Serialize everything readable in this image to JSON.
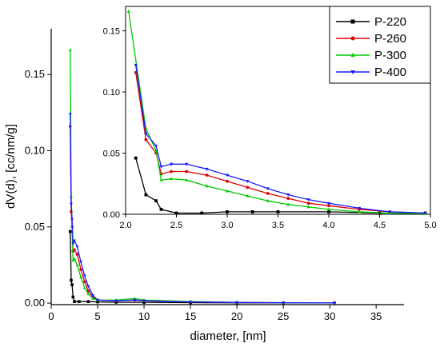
{
  "chart_data": [
    {
      "type": "line",
      "title": "",
      "xlabel": "diameter, [nm]",
      "ylabel": "dV(d), [cc/nm/g]",
      "xlim": [
        0,
        38
      ],
      "ylim": [
        -0.001,
        0.18
      ],
      "xticks": [
        0,
        5,
        10,
        15,
        20,
        25,
        30,
        35
      ],
      "yticks": [
        0.0,
        0.05,
        0.1,
        0.15
      ],
      "xtick_labels": [
        "0",
        "5",
        "10",
        "15",
        "20",
        "25",
        "30",
        "35"
      ],
      "ytick_labels": [
        "0.00",
        "0.05",
        "0.10",
        "0.15"
      ],
      "legend_position": "top-right",
      "grid": false,
      "series": [
        {
          "name": "P-220",
          "color": "#000000",
          "marker": "square",
          "x": [
            2.05,
            2.15,
            2.25,
            2.35,
            2.5,
            3.0,
            4.0,
            5.0,
            7.0,
            10.0,
            15.0,
            20.0,
            25.0,
            30.5
          ],
          "y": [
            0.047,
            0.015,
            0.012,
            0.004,
            0.001,
            0.001,
            0.001,
            0.0008,
            0.0006,
            0.0005,
            0.0003,
            0.0002,
            0.0001,
            0.0001
          ]
        },
        {
          "name": "P-260",
          "color": "#e00000",
          "marker": "circle",
          "x": [
            2.05,
            2.15,
            2.25,
            2.35,
            2.5,
            2.8,
            3.2,
            3.6,
            4.0,
            4.5,
            5.0,
            7.0,
            9.0,
            10.0,
            15.0,
            20.0,
            25.0,
            30.5
          ],
          "y": [
            0.116,
            0.06,
            0.05,
            0.034,
            0.035,
            0.032,
            0.022,
            0.014,
            0.008,
            0.004,
            0.002,
            0.0015,
            0.002,
            0.0015,
            0.0008,
            0.0004,
            0.0002,
            0.0001
          ]
        },
        {
          "name": "P-300",
          "color": "#00cc00",
          "marker": "triangle-up",
          "x": [
            2.05,
            2.15,
            2.25,
            2.35,
            2.5,
            2.8,
            3.2,
            3.6,
            4.0,
            4.5,
            5.0,
            7.0,
            9.0,
            10.0,
            15.0,
            20.0,
            25.0,
            30.5
          ],
          "y": [
            0.166,
            0.07,
            0.05,
            0.028,
            0.029,
            0.025,
            0.017,
            0.01,
            0.006,
            0.003,
            0.002,
            0.002,
            0.003,
            0.002,
            0.001,
            0.0005,
            0.0002,
            0.0001
          ]
        },
        {
          "name": "P-400",
          "color": "#1a1aff",
          "marker": "triangle-down",
          "x": [
            2.05,
            2.15,
            2.25,
            2.35,
            2.5,
            2.8,
            3.2,
            3.6,
            4.0,
            4.5,
            5.0,
            7.0,
            9.0,
            10.0,
            15.0,
            20.0,
            25.0,
            30.5
          ],
          "y": [
            0.124,
            0.065,
            0.055,
            0.039,
            0.041,
            0.037,
            0.027,
            0.018,
            0.011,
            0.005,
            0.002,
            0.0015,
            0.002,
            0.0015,
            0.0008,
            0.0004,
            0.0002,
            0.0001
          ]
        }
      ]
    },
    {
      "type": "line",
      "title": "",
      "xlabel": "",
      "ylabel": "",
      "xlim": [
        2.0,
        5.0
      ],
      "ylim": [
        0,
        0.17
      ],
      "xticks": [
        2.0,
        2.5,
        3.0,
        3.5,
        4.0,
        4.5,
        5.0
      ],
      "yticks": [
        0.0,
        0.05,
        0.1,
        0.15
      ],
      "xtick_labels": [
        "2.0",
        "2.5",
        "3.0",
        "3.5",
        "4.0",
        "4.5",
        "5.0"
      ],
      "ytick_labels": [
        "0.00",
        "0.05",
        "0.10",
        "0.15"
      ],
      "grid": false,
      "series": [
        {
          "name": "P-220",
          "color": "#000000",
          "marker": "square",
          "x": [
            2.1,
            2.2,
            2.3,
            2.35,
            2.5,
            2.75,
            3.0,
            3.25,
            3.5,
            4.0,
            4.5,
            4.95
          ],
          "y": [
            0.046,
            0.016,
            0.011,
            0.004,
            0.001,
            0.001,
            0.002,
            0.002,
            0.002,
            0.002,
            0.001,
            0.001
          ]
        },
        {
          "name": "P-260",
          "color": "#e00000",
          "marker": "circle",
          "x": [
            2.1,
            2.2,
            2.3,
            2.35,
            2.45,
            2.6,
            2.8,
            3.0,
            3.2,
            3.4,
            3.6,
            3.8,
            4.0,
            4.3,
            4.6,
            4.95
          ],
          "y": [
            0.116,
            0.061,
            0.05,
            0.033,
            0.035,
            0.035,
            0.032,
            0.027,
            0.022,
            0.017,
            0.013,
            0.009,
            0.007,
            0.004,
            0.002,
            0.001
          ]
        },
        {
          "name": "P-300",
          "color": "#00cc00",
          "marker": "triangle-up",
          "x": [
            2.03,
            2.2,
            2.3,
            2.35,
            2.45,
            2.6,
            2.8,
            3.0,
            3.2,
            3.4,
            3.6,
            3.8,
            4.0,
            4.3,
            4.6,
            4.95
          ],
          "y": [
            0.166,
            0.07,
            0.052,
            0.028,
            0.029,
            0.028,
            0.023,
            0.019,
            0.015,
            0.011,
            0.008,
            0.006,
            0.004,
            0.002,
            0.001,
            0.0005
          ]
        },
        {
          "name": "P-400",
          "color": "#1a1aff",
          "marker": "triangle-down",
          "x": [
            2.1,
            2.2,
            2.3,
            2.35,
            2.45,
            2.6,
            2.8,
            3.0,
            3.2,
            3.4,
            3.6,
            3.8,
            4.0,
            4.3,
            4.6,
            4.95
          ],
          "y": [
            0.122,
            0.066,
            0.056,
            0.039,
            0.041,
            0.041,
            0.037,
            0.032,
            0.027,
            0.021,
            0.016,
            0.012,
            0.009,
            0.005,
            0.002,
            0.001
          ]
        }
      ]
    }
  ],
  "legend": {
    "items": [
      {
        "label": "P-220",
        "color": "#000000",
        "marker": "square"
      },
      {
        "label": "P-260",
        "color": "#e00000",
        "marker": "circle"
      },
      {
        "label": "P-300",
        "color": "#00cc00",
        "marker": "triangle-up"
      },
      {
        "label": "P-400",
        "color": "#1a1aff",
        "marker": "triangle-down"
      }
    ]
  }
}
